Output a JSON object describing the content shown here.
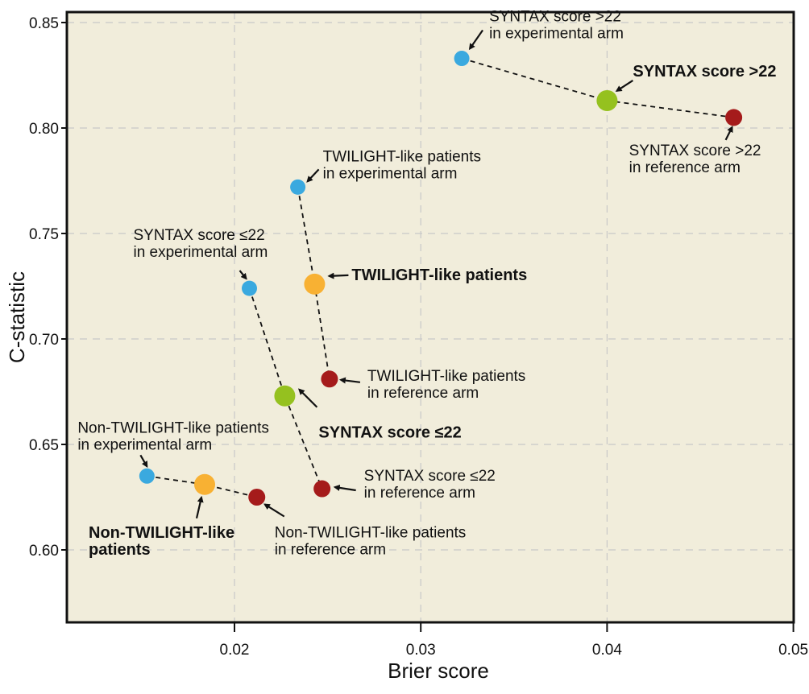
{
  "chart_data": {
    "type": "scatter",
    "title": "",
    "xlabel": "Brier score",
    "ylabel": "C-statistic",
    "xlim": [
      0.011,
      0.05
    ],
    "ylim": [
      0.565,
      0.855
    ],
    "xticks": [
      0.02,
      0.03,
      0.04,
      0.05
    ],
    "xtick_labels": [
      "0.02",
      "0.03",
      "0.04",
      "0.05"
    ],
    "yticks": [
      0.6,
      0.65,
      0.7,
      0.75,
      0.8,
      0.85
    ],
    "ytick_labels": [
      "0.60",
      "0.65",
      "0.70",
      "0.75",
      "0.80",
      "0.85"
    ],
    "grid": true,
    "legend": "none",
    "colors": {
      "experimental": "#3aa9df",
      "reference": "#a51b1b",
      "combined_syntax": "#95c11f",
      "combined_twilight": "#f8b133",
      "background": "#f1eddb",
      "grid": "#c8c8c8"
    },
    "series": [
      {
        "name": "SYNTAX score >22",
        "combined_color": "combined_syntax",
        "points": [
          {
            "role": "experimental",
            "x": 0.0322,
            "y": 0.833,
            "label": [
              "SYNTAX score >22",
              "in experimental arm"
            ],
            "bold": false
          },
          {
            "role": "combined",
            "x": 0.04,
            "y": 0.813,
            "label": [
              "SYNTAX score >22"
            ],
            "bold": true
          },
          {
            "role": "reference",
            "x": 0.0468,
            "y": 0.805,
            "label": [
              "SYNTAX score >22",
              "in reference arm"
            ],
            "bold": false
          }
        ]
      },
      {
        "name": "TWILIGHT-like patients",
        "combined_color": "combined_twilight",
        "points": [
          {
            "role": "experimental",
            "x": 0.0234,
            "y": 0.772,
            "label": [
              "TWILIGHT-like patients",
              "in experimental arm"
            ],
            "bold": false
          },
          {
            "role": "combined",
            "x": 0.0243,
            "y": 0.726,
            "label": [
              "TWILIGHT-like patients"
            ],
            "bold": true
          },
          {
            "role": "reference",
            "x": 0.0251,
            "y": 0.681,
            "label": [
              "TWILIGHT-like patients",
              "in reference arm"
            ],
            "bold": false
          }
        ]
      },
      {
        "name": "SYNTAX score ≤22",
        "combined_color": "combined_syntax",
        "points": [
          {
            "role": "experimental",
            "x": 0.0208,
            "y": 0.724,
            "label": [
              "SYNTAX score ≤22",
              "in experimental arm"
            ],
            "bold": false
          },
          {
            "role": "combined",
            "x": 0.0227,
            "y": 0.673,
            "label": [
              "SYNTAX score ≤22"
            ],
            "bold": true
          },
          {
            "role": "reference",
            "x": 0.0247,
            "y": 0.629,
            "label": [
              "SYNTAX score ≤22",
              "in reference arm"
            ],
            "bold": false
          }
        ]
      },
      {
        "name": "Non-TWILIGHT-like patients",
        "combined_color": "combined_twilight",
        "points": [
          {
            "role": "experimental",
            "x": 0.0153,
            "y": 0.635,
            "label": [
              "Non-TWILIGHT-like patients",
              "in experimental arm"
            ],
            "bold": false
          },
          {
            "role": "combined",
            "x": 0.0184,
            "y": 0.631,
            "label": [
              "Non-TWILIGHT-like",
              "patients"
            ],
            "bold": true
          },
          {
            "role": "reference",
            "x": 0.0212,
            "y": 0.625,
            "label": [
              "Non-TWILIGHT-like patients",
              "in reference arm"
            ],
            "bold": false
          }
        ]
      }
    ]
  }
}
